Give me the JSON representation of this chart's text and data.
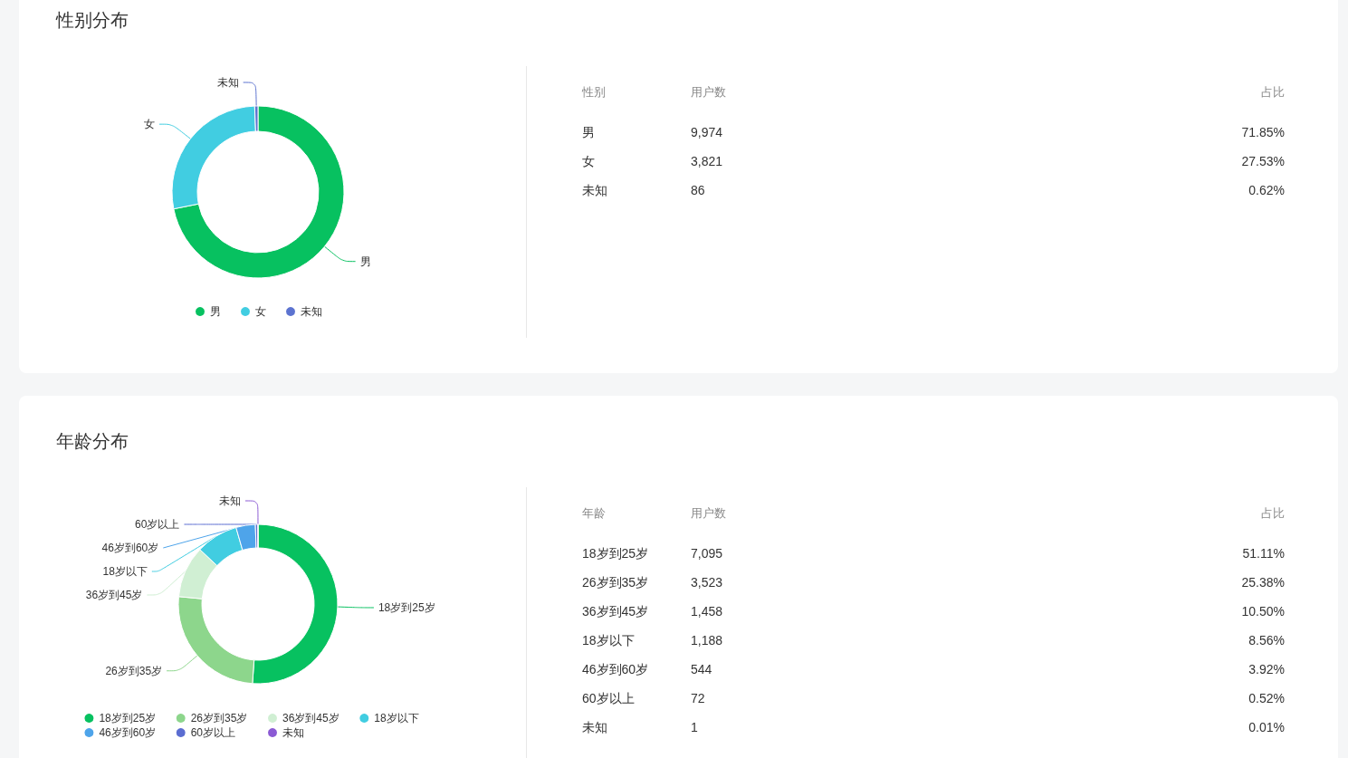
{
  "chart_data": [
    {
      "type": "donut",
      "title": "性别分布",
      "categories": [
        "男",
        "女",
        "未知"
      ],
      "values": [
        71.85,
        27.53,
        0.62
      ],
      "colors": [
        "#07c160",
        "#41cde1",
        "#5c73d0"
      ],
      "legend": "bottom"
    },
    {
      "type": "other",
      "annotations": [
        "性别",
        "用户数",
        "占比",
        "男",
        "9,974",
        "71.85%",
        "女",
        "3,821",
        "27.53%",
        "未知",
        "86",
        "0.62%"
      ]
    },
    {
      "type": "donut",
      "title": "年龄分布",
      "categories": [
        "18岁到25岁",
        "26岁到35岁",
        "36岁到45岁",
        "18岁以下",
        "46岁到60岁",
        "60岁以上",
        "未知"
      ],
      "values": [
        51.11,
        25.38,
        10.5,
        8.56,
        3.92,
        0.52,
        0.01
      ],
      "colors": [
        "#07c160",
        "#8dd68c",
        "#d0efd3",
        "#41cde1",
        "#4ea4ea",
        "#5b6dd1",
        "#8b5ad4"
      ],
      "legend": "bottom"
    },
    {
      "type": "other",
      "annotations": [
        "年龄",
        "用户数",
        "占比",
        "18岁到25岁",
        "7,095",
        "51.11%",
        "26岁到35岁",
        "3,523",
        "25.38%",
        "36岁到45岁",
        "1,458",
        "10.50%",
        "18岁以下",
        "1,188",
        "8.56%",
        "46岁到60岁",
        "544",
        "3.92%",
        "60岁以上",
        "72",
        "0.52%",
        "未知",
        "1",
        "0.01%"
      ]
    }
  ]
}
